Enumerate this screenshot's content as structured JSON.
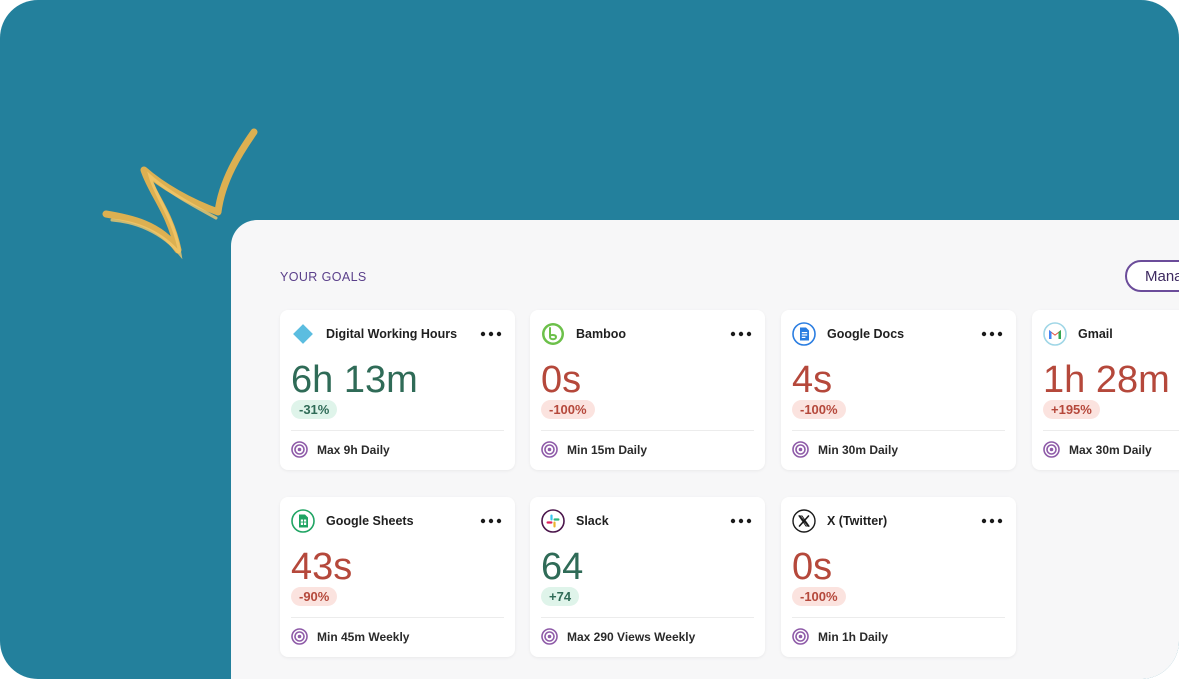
{
  "colors": {
    "background": "#23809c",
    "panel": "#f7f7f8",
    "accent_purple": "#6b4c9a",
    "good_text": "#2f6b57",
    "good_badge_bg": "#dff4ea",
    "bad_text": "#b5483b",
    "bad_badge_bg": "#fbe3df"
  },
  "section_title": "YOUR GOALS",
  "manage_button": "Manage",
  "goals": [
    {
      "app": "Digital Working Hours",
      "icon": "diamond-icon",
      "value": "6h 13m",
      "change": "-31%",
      "status": "good",
      "goal": "Max 9h Daily"
    },
    {
      "app": "Bamboo",
      "icon": "bamboo-icon",
      "value": "0s",
      "change": "-100%",
      "status": "bad",
      "goal": "Min 15m Daily"
    },
    {
      "app": "Google Docs",
      "icon": "google-docs-icon",
      "value": "4s",
      "change": "-100%",
      "status": "bad",
      "goal": "Min 30m Daily"
    },
    {
      "app": "Gmail",
      "icon": "gmail-icon",
      "value": "1h 28m",
      "change": "+195%",
      "status": "bad",
      "goal": "Max 30m Daily"
    },
    {
      "app": "Google Sheets",
      "icon": "google-sheets-icon",
      "value": "43s",
      "change": "-90%",
      "status": "bad",
      "goal": "Min 45m Weekly"
    },
    {
      "app": "Slack",
      "icon": "slack-icon",
      "value": "64",
      "change": "+74",
      "status": "good",
      "goal": "Max 290 Views Weekly"
    },
    {
      "app": "X (Twitter)",
      "icon": "x-twitter-icon",
      "value": "0s",
      "change": "-100%",
      "status": "bad",
      "goal": "Min 1h Daily"
    }
  ]
}
